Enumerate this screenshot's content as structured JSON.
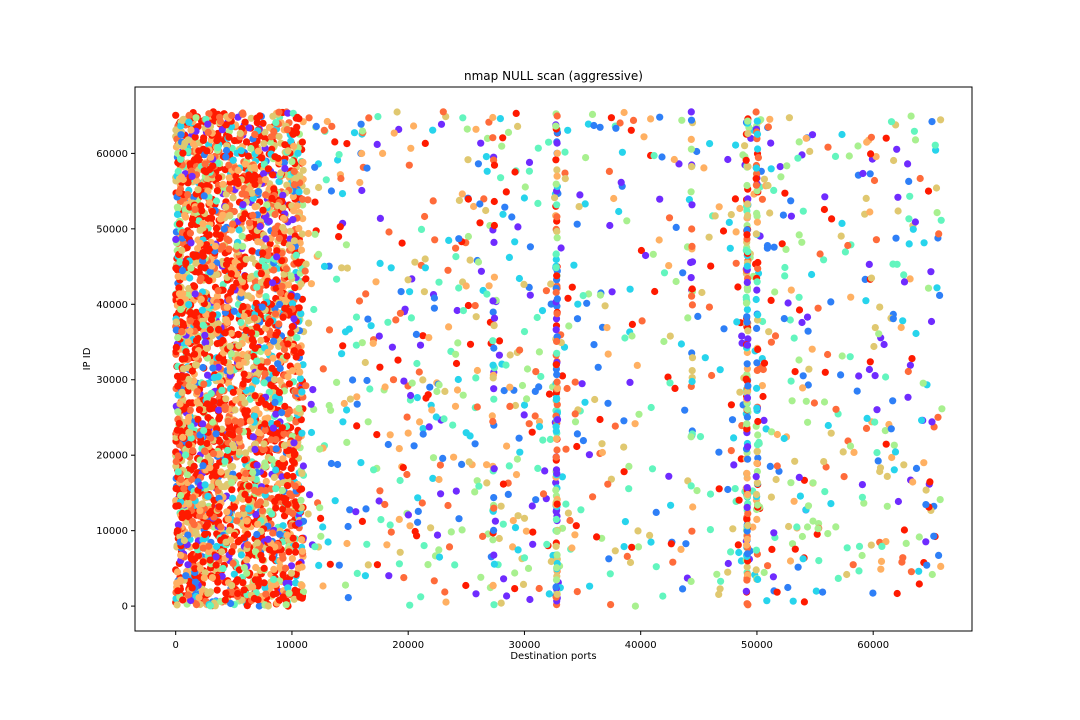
{
  "chart_data": {
    "type": "scatter",
    "title": "nmap NULL scan (aggressive)",
    "xlabel": "Destination ports",
    "ylabel": "IP ID",
    "xlim": [
      -3500,
      68500
    ],
    "ylim": [
      -3300,
      68800
    ],
    "x_ticks": [
      0,
      10000,
      20000,
      30000,
      40000,
      50000,
      60000
    ],
    "x_tick_labels": [
      "0",
      "10000",
      "20000",
      "30000",
      "40000",
      "50000",
      "60000"
    ],
    "y_ticks": [
      0,
      10000,
      20000,
      30000,
      40000,
      50000,
      60000
    ],
    "y_tick_labels": [
      "0",
      "10000",
      "20000",
      "30000",
      "40000",
      "50000",
      "60000"
    ],
    "grid": false,
    "legend": "none",
    "colormap": "rainbow",
    "colors": [
      "#6f2bff",
      "#2e7ff7",
      "#27d4ec",
      "#62f5be",
      "#a8f08f",
      "#e0c870",
      "#ffb062",
      "#ff6b3a",
      "#ff1a00"
    ],
    "clusters": [
      {
        "x_range": [
          0,
          11000
        ],
        "y_range": [
          0,
          65535
        ],
        "approx_points": 3200
      },
      {
        "x_range": [
          11000,
          36000
        ],
        "y_range": [
          0,
          65535
        ],
        "approx_points": 520
      },
      {
        "x_range": [
          36000,
          48000
        ],
        "y_range": [
          0,
          65535
        ],
        "approx_points": 150
      },
      {
        "x_range": [
          48000,
          66000
        ],
        "y_range": [
          0,
          65535
        ],
        "approx_points": 380
      }
    ],
    "dense_port_columns": [
      {
        "x": 32768,
        "approx_points": 140
      },
      {
        "x": 49152,
        "approx_points": 160
      },
      {
        "x": 50000,
        "approx_points": 70
      },
      {
        "x": 27350,
        "approx_points": 40
      },
      {
        "x": 44400,
        "approx_points": 35
      }
    ]
  }
}
